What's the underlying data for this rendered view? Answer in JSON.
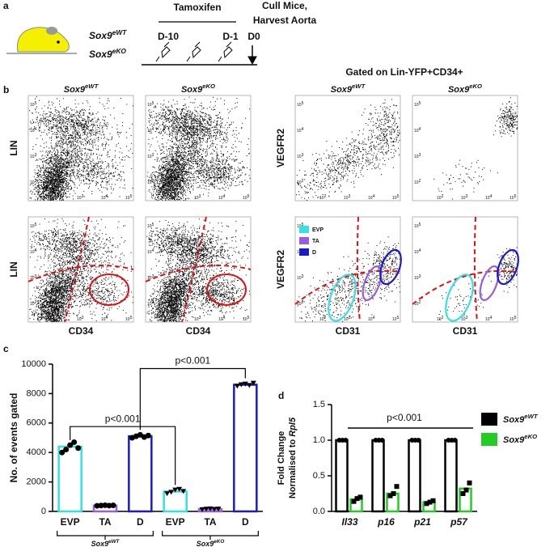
{
  "panel_labels": [
    "a",
    "b",
    "c",
    "d"
  ],
  "genotypes": [
    {
      "gene": "Sox9",
      "allele": "eWT"
    },
    {
      "gene": "Sox9",
      "allele": "eKO"
    }
  ],
  "schematic": {
    "treatment": "Tamoxifen",
    "start": "D-10",
    "end": "D-1",
    "endpoint": "D0",
    "harvest": [
      "Cull Mice,",
      "Harvest Aorta"
    ]
  },
  "flow": {
    "gate_title": "Gated on Lin-YFP+CD34+",
    "left_y": "LIN",
    "left_x": "CD34",
    "right_y": "VEGFR2",
    "right_x": "CD31",
    "legend": [
      "EVP",
      "TA",
      "D"
    ],
    "legend_colors": [
      "#33e0e8",
      "#9a5ce0",
      "#1a1acc"
    ],
    "tick_base": "10",
    "tick_exponents": [
      "2",
      "3",
      "4",
      "5"
    ]
  },
  "chart_data": [
    {
      "type": "bar",
      "ylabel": "No. of events gated",
      "categories": [
        "EVP",
        "TA",
        "D",
        "EVP",
        "TA",
        "D"
      ],
      "values": [
        4400,
        400,
        5100,
        1350,
        150,
        8600
      ],
      "colors": [
        "#33e0e8",
        "#9a5ce0",
        "#1a1acc",
        "#33e0e8",
        "#9a5ce0",
        "#1a1acc"
      ],
      "points": [
        [
          4000,
          4200,
          4500,
          4700,
          4300
        ],
        [
          380,
          400,
          420,
          390,
          410
        ],
        [
          5000,
          5100,
          5200,
          5050,
          5150
        ],
        [
          1200,
          1300,
          1450,
          1500,
          1350
        ],
        [
          120,
          150,
          170,
          140,
          160
        ],
        [
          8500,
          8600,
          8650,
          8550,
          8700
        ]
      ],
      "annotations": [
        "p<0.001",
        "p<0.001"
      ],
      "ylim": [
        0,
        10000
      ],
      "yticks": [
        0,
        2000,
        4000,
        6000,
        8000,
        10000
      ]
    },
    {
      "type": "bar",
      "ylabel": {
        "line1": "Fold Change",
        "line2": "Normalised to",
        "gene": "Rpl5"
      },
      "categories": [
        "Il33",
        "p16",
        "p21",
        "p57"
      ],
      "series": [
        {
          "name": "Sox9",
          "allele": "eWT",
          "color": "#000000",
          "values": [
            1,
            1,
            1,
            1
          ],
          "points": [
            [
              1,
              1,
              1
            ],
            [
              1,
              1,
              1
            ],
            [
              1,
              1,
              1
            ],
            [
              1,
              1,
              1
            ]
          ]
        },
        {
          "name": "Sox9",
          "allele": "eKO",
          "color": "#22cc22",
          "values": [
            0.17,
            0.25,
            0.13,
            0.32
          ],
          "points": [
            [
              0.14,
              0.18,
              0.2
            ],
            [
              0.22,
              0.25,
              0.35
            ],
            [
              0.11,
              0.13,
              0.15
            ],
            [
              0.25,
              0.3,
              0.4
            ]
          ]
        }
      ],
      "annotation": "p<0.001",
      "ylim": [
        0,
        1.5
      ],
      "yticks": [
        {
          "value": 0,
          "label": "0.0"
        },
        {
          "value": 0.5,
          "label": "0.5"
        },
        {
          "value": 1,
          "label": "1.0"
        },
        {
          "value": 1.5,
          "label": "1.5"
        }
      ]
    }
  ]
}
